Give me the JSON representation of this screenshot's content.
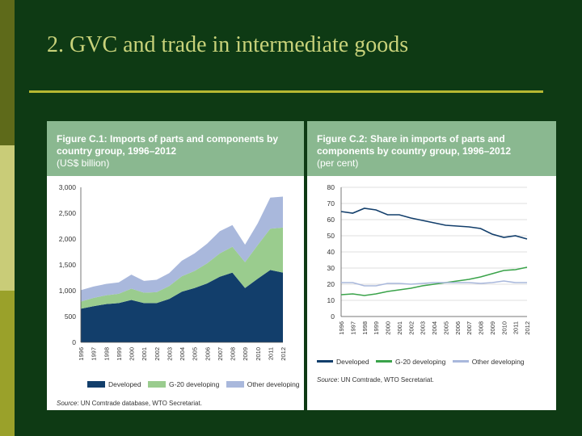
{
  "slide": {
    "title": "2. GVC and trade in intermediate goods"
  },
  "colors": {
    "background": "#0e3a14",
    "title": "#c8d27a",
    "rule": "#b6b832",
    "header": "#8ab890",
    "developed": "#123e6b",
    "g20": "#9acc8e",
    "other": "#a9b8dc",
    "g20_line": "#3aa34a",
    "other_line": "#a9b8dc"
  },
  "figure1": {
    "title_line1": "Figure C.1: Imports of parts and components by",
    "title_line2": "country group, 1996–2012",
    "title_line3": "(US$ billion)",
    "source_label": "Source",
    "source_text": ": UN Comtrade database, WTO Secretariat."
  },
  "figure2": {
    "title_line1": "Figure C.2: Share in imports of parts and",
    "title_line2": "components by country group, 1996–2012",
    "title_line3": "(per cent)",
    "source_label": "Source",
    "source_text": ": UN Comtrade, WTO Secretariat."
  },
  "chart_data": [
    {
      "type": "area",
      "stacked": true,
      "title": "Figure C.1: Imports of parts and components by country group, 1996–2012 (US$ billion)",
      "x": [
        "1996",
        "1997",
        "1998",
        "1999",
        "2000",
        "2001",
        "2002",
        "2003",
        "2004",
        "2005",
        "2006",
        "2007",
        "2008",
        "2009",
        "2010",
        "2011",
        "2012"
      ],
      "series": [
        {
          "name": "Developed",
          "values": [
            650,
            700,
            740,
            760,
            820,
            760,
            760,
            840,
            980,
            1050,
            1140,
            1270,
            1350,
            1050,
            1230,
            1400,
            1350
          ]
        },
        {
          "name": "G-20 developing",
          "values": [
            140,
            160,
            170,
            180,
            220,
            200,
            210,
            250,
            300,
            330,
            390,
            450,
            500,
            500,
            650,
            800,
            870
          ]
        },
        {
          "name": "Other developing",
          "values": [
            220,
            220,
            220,
            220,
            270,
            230,
            240,
            250,
            300,
            340,
            380,
            430,
            420,
            340,
            420,
            600,
            600
          ]
        }
      ],
      "yticks": [
        "3,000",
        "2,500",
        "2,000",
        "1,500",
        "1,000",
        "500",
        "0"
      ],
      "ylim": [
        0,
        3000
      ],
      "grid": false,
      "legend": "bottom"
    },
    {
      "type": "line",
      "title": "Figure C.2: Share in imports of parts and components by country group, 1996–2012 (per cent)",
      "x": [
        "1996",
        "1997",
        "1998",
        "1999",
        "2000",
        "2001",
        "2002",
        "2003",
        "2004",
        "2005",
        "2006",
        "2007",
        "2008",
        "2009",
        "2010",
        "2011",
        "2012"
      ],
      "series": [
        {
          "name": "Developed",
          "values": [
            65,
            64,
            67,
            66,
            63,
            63,
            61,
            59.5,
            58,
            56.5,
            56,
            55.5,
            54.5,
            51,
            49,
            50,
            48
          ]
        },
        {
          "name": "G-20 developing",
          "values": [
            13.5,
            14,
            13,
            14,
            15.5,
            16.5,
            17.5,
            19,
            20,
            21,
            22,
            23,
            24.5,
            26.5,
            28.5,
            29,
            30.5
          ]
        },
        {
          "name": "Other developing",
          "values": [
            21,
            21,
            19,
            19,
            20.5,
            20.5,
            20,
            20.5,
            21,
            21,
            21,
            21,
            20.5,
            21,
            22,
            21,
            21
          ]
        }
      ],
      "yticks": [
        "80",
        "70",
        "60",
        "50",
        "40",
        "30",
        "20",
        "10",
        "0"
      ],
      "ylim": [
        0,
        80
      ],
      "grid": true,
      "legend": "bottom"
    }
  ]
}
